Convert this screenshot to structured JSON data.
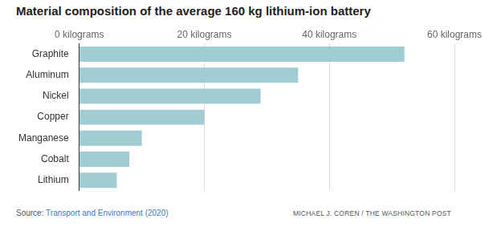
{
  "chart_data": {
    "type": "bar",
    "orientation": "horizontal",
    "title": "Material composition of the average 160 kg lithium-ion battery",
    "categories": [
      "Graphite",
      "Aluminum",
      "Nickel",
      "Copper",
      "Manganese",
      "Cobalt",
      "Lithium"
    ],
    "values": [
      52,
      35,
      29,
      20,
      10,
      8,
      6
    ],
    "color": "#9fcdd3",
    "xlim": [
      0,
      60
    ],
    "xticks": [
      {
        "value": 0,
        "label": "0 kilograms"
      },
      {
        "value": 20,
        "label": "20 kilograms"
      },
      {
        "value": 40,
        "label": "40 kilograms"
      },
      {
        "value": 60,
        "label": "60 kilograms"
      }
    ],
    "grid": true,
    "source": {
      "label": "Source:",
      "text": "Transport and Environment (2020)"
    },
    "credit": "MICHAEL J. COREN / THE WASHINGTON POST"
  }
}
